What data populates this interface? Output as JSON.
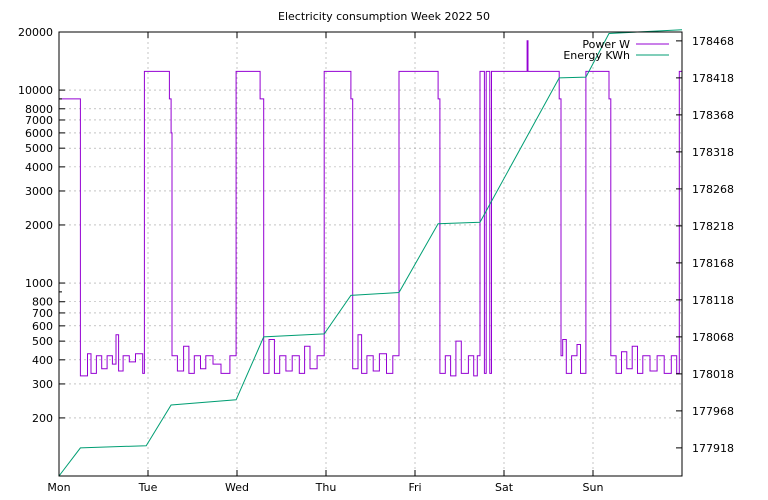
{
  "chart_data": {
    "type": "line",
    "title": "Electricity consumption Week 2022 50",
    "xlabel": "",
    "ylabel": "",
    "y2label": "",
    "grid": true,
    "legend_position": "top-right",
    "x_ticks": [
      "Mon",
      "Tue",
      "Wed",
      "Thu",
      "Fri",
      "Sat",
      "Sun"
    ],
    "xlim": [
      0,
      7
    ],
    "y_left": {
      "scale": "log",
      "min": 100,
      "max": 20000,
      "ticks": [
        200,
        300,
        400,
        500,
        600,
        700,
        800,
        1000,
        2000,
        3000,
        4000,
        5000,
        6000,
        7000,
        8000,
        10000,
        20000
      ]
    },
    "y_right": {
      "scale": "linear",
      "min": 177880,
      "max": 178480,
      "ticks": [
        177918,
        177968,
        178018,
        178068,
        178118,
        178168,
        178218,
        178268,
        178318,
        178368,
        178418,
        178468
      ]
    },
    "colors": {
      "power": "#9400d3",
      "energy": "#009e73"
    },
    "series": [
      {
        "name": "Power W",
        "axis": "left",
        "points": [
          [
            0.0,
            12500
          ],
          [
            0.0,
            9000
          ],
          [
            0.24,
            9000
          ],
          [
            0.24,
            330
          ],
          [
            0.32,
            330
          ],
          [
            0.32,
            430
          ],
          [
            0.36,
            430
          ],
          [
            0.36,
            340
          ],
          [
            0.42,
            340
          ],
          [
            0.42,
            420
          ],
          [
            0.48,
            420
          ],
          [
            0.48,
            360
          ],
          [
            0.54,
            360
          ],
          [
            0.54,
            420
          ],
          [
            0.6,
            420
          ],
          [
            0.6,
            380
          ],
          [
            0.64,
            380
          ],
          [
            0.64,
            540
          ],
          [
            0.67,
            540
          ],
          [
            0.67,
            350
          ],
          [
            0.72,
            350
          ],
          [
            0.72,
            420
          ],
          [
            0.79,
            420
          ],
          [
            0.79,
            390
          ],
          [
            0.86,
            390
          ],
          [
            0.86,
            430
          ],
          [
            0.94,
            430
          ],
          [
            0.94,
            340
          ],
          [
            0.96,
            340
          ],
          [
            0.96,
            9000
          ],
          [
            0.96,
            12500
          ],
          [
            1.24,
            12500
          ],
          [
            1.24,
            9000
          ],
          [
            1.26,
            9000
          ],
          [
            1.26,
            6000
          ],
          [
            1.27,
            6000
          ],
          [
            1.27,
            420
          ],
          [
            1.33,
            420
          ],
          [
            1.33,
            350
          ],
          [
            1.4,
            350
          ],
          [
            1.4,
            470
          ],
          [
            1.46,
            470
          ],
          [
            1.46,
            340
          ],
          [
            1.52,
            340
          ],
          [
            1.52,
            420
          ],
          [
            1.59,
            420
          ],
          [
            1.59,
            360
          ],
          [
            1.65,
            360
          ],
          [
            1.65,
            420
          ],
          [
            1.73,
            420
          ],
          [
            1.73,
            380
          ],
          [
            1.82,
            380
          ],
          [
            1.82,
            340
          ],
          [
            1.92,
            340
          ],
          [
            1.92,
            420
          ],
          [
            1.99,
            420
          ],
          [
            1.99,
            9000
          ],
          [
            1.99,
            12500
          ],
          [
            2.26,
            12500
          ],
          [
            2.26,
            9000
          ],
          [
            2.3,
            9000
          ],
          [
            2.3,
            340
          ],
          [
            2.36,
            340
          ],
          [
            2.36,
            510
          ],
          [
            2.42,
            510
          ],
          [
            2.42,
            340
          ],
          [
            2.48,
            340
          ],
          [
            2.48,
            420
          ],
          [
            2.55,
            420
          ],
          [
            2.55,
            350
          ],
          [
            2.62,
            350
          ],
          [
            2.62,
            420
          ],
          [
            2.7,
            420
          ],
          [
            2.7,
            340
          ],
          [
            2.76,
            340
          ],
          [
            2.76,
            470
          ],
          [
            2.82,
            470
          ],
          [
            2.82,
            360
          ],
          [
            2.9,
            360
          ],
          [
            2.9,
            420
          ],
          [
            2.98,
            420
          ],
          [
            2.98,
            9000
          ],
          [
            2.98,
            12500
          ],
          [
            3.28,
            12500
          ],
          [
            3.28,
            9000
          ],
          [
            3.3,
            9000
          ],
          [
            3.3,
            360
          ],
          [
            3.36,
            360
          ],
          [
            3.36,
            540
          ],
          [
            3.4,
            540
          ],
          [
            3.4,
            340
          ],
          [
            3.46,
            340
          ],
          [
            3.46,
            420
          ],
          [
            3.53,
            420
          ],
          [
            3.53,
            350
          ],
          [
            3.6,
            350
          ],
          [
            3.6,
            430
          ],
          [
            3.68,
            430
          ],
          [
            3.68,
            340
          ],
          [
            3.75,
            340
          ],
          [
            3.75,
            420
          ],
          [
            3.82,
            420
          ],
          [
            3.82,
            9000
          ],
          [
            3.82,
            12500
          ],
          [
            4.26,
            12500
          ],
          [
            4.26,
            9000
          ],
          [
            4.28,
            9000
          ],
          [
            4.28,
            340
          ],
          [
            4.34,
            340
          ],
          [
            4.34,
            420
          ],
          [
            4.4,
            420
          ],
          [
            4.4,
            330
          ],
          [
            4.46,
            330
          ],
          [
            4.46,
            500
          ],
          [
            4.52,
            500
          ],
          [
            4.52,
            340
          ],
          [
            4.6,
            340
          ],
          [
            4.6,
            420
          ],
          [
            4.66,
            420
          ],
          [
            4.66,
            330
          ],
          [
            4.7,
            330
          ],
          [
            4.7,
            420
          ],
          [
            4.73,
            420
          ],
          [
            4.73,
            12500
          ],
          [
            4.78,
            12500
          ],
          [
            4.78,
            340
          ],
          [
            4.8,
            340
          ],
          [
            4.8,
            12500
          ],
          [
            4.84,
            12500
          ],
          [
            4.84,
            340
          ],
          [
            4.86,
            340
          ],
          [
            4.86,
            12500
          ],
          [
            5.26,
            12500
          ],
          [
            5.26,
            18000
          ],
          [
            5.27,
            18000
          ],
          [
            5.27,
            12500
          ],
          [
            5.62,
            12500
          ],
          [
            5.62,
            9000
          ],
          [
            5.64,
            9000
          ],
          [
            5.64,
            420
          ],
          [
            5.66,
            420
          ],
          [
            5.66,
            510
          ],
          [
            5.7,
            510
          ],
          [
            5.7,
            340
          ],
          [
            5.76,
            340
          ],
          [
            5.76,
            420
          ],
          [
            5.82,
            420
          ],
          [
            5.82,
            480
          ],
          [
            5.86,
            480
          ],
          [
            5.86,
            340
          ],
          [
            5.92,
            340
          ],
          [
            5.92,
            9000
          ],
          [
            5.92,
            12500
          ],
          [
            6.18,
            12500
          ],
          [
            6.18,
            9000
          ],
          [
            6.2,
            9000
          ],
          [
            6.2,
            420
          ],
          [
            6.26,
            420
          ],
          [
            6.26,
            340
          ],
          [
            6.32,
            340
          ],
          [
            6.32,
            440
          ],
          [
            6.38,
            440
          ],
          [
            6.38,
            360
          ],
          [
            6.44,
            360
          ],
          [
            6.44,
            470
          ],
          [
            6.5,
            470
          ],
          [
            6.5,
            340
          ],
          [
            6.56,
            340
          ],
          [
            6.56,
            420
          ],
          [
            6.64,
            420
          ],
          [
            6.64,
            350
          ],
          [
            6.72,
            350
          ],
          [
            6.72,
            420
          ],
          [
            6.8,
            420
          ],
          [
            6.8,
            340
          ],
          [
            6.88,
            340
          ],
          [
            6.88,
            420
          ],
          [
            6.94,
            420
          ],
          [
            6.94,
            340
          ],
          [
            6.97,
            340
          ],
          [
            6.97,
            12500
          ],
          [
            7.0,
            12500
          ]
        ]
      },
      {
        "name": "Energy KWh",
        "axis": "right",
        "points": [
          [
            0.0,
            177880
          ],
          [
            0.24,
            177918
          ],
          [
            0.98,
            177921
          ],
          [
            1.26,
            177976
          ],
          [
            1.99,
            177983
          ],
          [
            2.3,
            178068
          ],
          [
            2.98,
            178072
          ],
          [
            3.28,
            178124
          ],
          [
            3.82,
            178128
          ],
          [
            4.26,
            178221
          ],
          [
            4.73,
            178223
          ],
          [
            5.62,
            178418
          ],
          [
            5.92,
            178419
          ],
          [
            6.18,
            178478
          ],
          [
            7.0,
            178483
          ]
        ]
      }
    ]
  }
}
